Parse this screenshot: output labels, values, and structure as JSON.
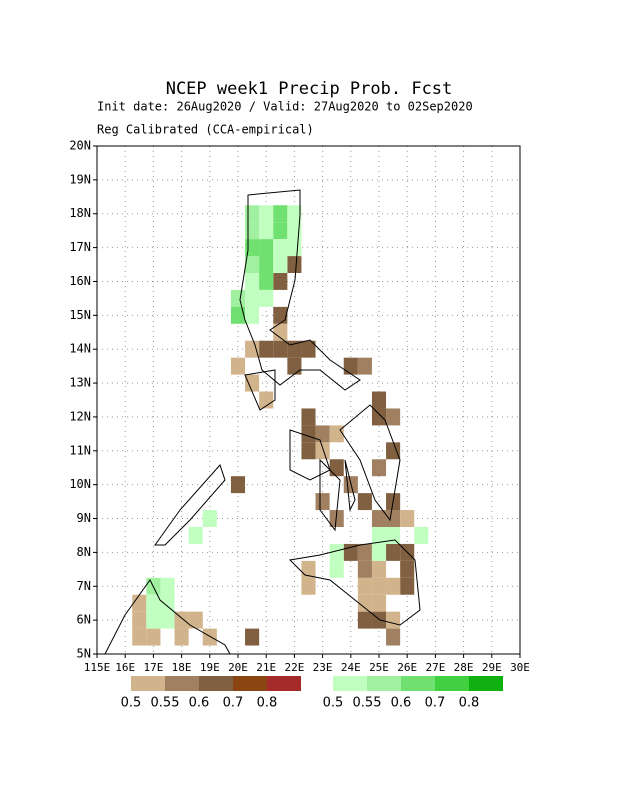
{
  "chart_data": {
    "type": "grid-map",
    "title": "NCEP week1 Precip Prob. Fcst",
    "subtitle": "Init date: 26Aug2020 / Valid: 27Aug2020 to 02Sep2020",
    "subtitle2": "Reg Calibrated (CCA-empirical)",
    "xlim": [
      115,
      130
    ],
    "ylim": [
      5,
      20
    ],
    "xticks": [
      {
        "value": 115,
        "label": "115E"
      },
      {
        "value": 116,
        "label": "16E"
      },
      {
        "value": 117,
        "label": "17E"
      },
      {
        "value": 118,
        "label": "18E"
      },
      {
        "value": 119,
        "label": "19E"
      },
      {
        "value": 120,
        "label": "20E"
      },
      {
        "value": 121,
        "label": "21E"
      },
      {
        "value": 122,
        "label": "22E"
      },
      {
        "value": 123,
        "label": "23E"
      },
      {
        "value": 124,
        "label": "24E"
      },
      {
        "value": 125,
        "label": "25E"
      },
      {
        "value": 126,
        "label": "26E"
      },
      {
        "value": 127,
        "label": "27E"
      },
      {
        "value": 128,
        "label": "28E"
      },
      {
        "value": 129,
        "label": "29E"
      },
      {
        "value": 130,
        "label": "30E"
      }
    ],
    "yticks": [
      {
        "value": 5,
        "label": "5N"
      },
      {
        "value": 6,
        "label": "6N"
      },
      {
        "value": 7,
        "label": "7N"
      },
      {
        "value": 8,
        "label": "8N"
      },
      {
        "value": 9,
        "label": "9N"
      },
      {
        "value": 10,
        "label": "10N"
      },
      {
        "value": 11,
        "label": "11N"
      },
      {
        "value": 12,
        "label": "12N"
      },
      {
        "value": 13,
        "label": "13N"
      },
      {
        "value": 14,
        "label": "14N"
      },
      {
        "value": 15,
        "label": "15N"
      },
      {
        "value": 16,
        "label": "16N"
      },
      {
        "value": 17,
        "label": "17N"
      },
      {
        "value": 18,
        "label": "18N"
      },
      {
        "value": 19,
        "label": "19N"
      },
      {
        "value": 20,
        "label": "20N"
      }
    ],
    "grid": true,
    "cell_size": 0.5,
    "dry": {
      "colors": [
        "#d2b48c",
        "#a08060",
        "#806040",
        "#8b4513",
        "#a52a2a"
      ],
      "levels": [
        0.5,
        0.55,
        0.6,
        0.7,
        0.8
      ],
      "cells": [
        [
          121.75,
          16.25,
          0.6
        ],
        [
          121.25,
          15.75,
          0.6
        ],
        [
          121.25,
          14.75,
          0.6
        ],
        [
          121.25,
          14.25,
          0.5
        ],
        [
          121.75,
          13.75,
          0.6
        ],
        [
          121.25,
          13.75,
          0.6
        ],
        [
          122.25,
          13.75,
          0.6
        ],
        [
          120.25,
          13.75,
          0.5
        ],
        [
          120.75,
          13.75,
          0.6
        ],
        [
          119.75,
          13.25,
          0.5
        ],
        [
          121.75,
          13.25,
          0.6
        ],
        [
          120.75,
          12.25,
          0.5
        ],
        [
          120.25,
          12.75,
          0.5
        ],
        [
          123.75,
          13.25,
          0.6
        ],
        [
          124.25,
          13.25,
          0.55
        ],
        [
          124.75,
          12.25,
          0.6
        ],
        [
          124.75,
          11.75,
          0.6
        ],
        [
          125.25,
          11.75,
          0.55
        ],
        [
          122.25,
          11.75,
          0.6
        ],
        [
          122.25,
          11.25,
          0.6
        ],
        [
          122.25,
          10.75,
          0.6
        ],
        [
          122.75,
          11.25,
          0.55
        ],
        [
          123.25,
          11.25,
          0.5
        ],
        [
          122.75,
          10.75,
          0.5
        ],
        [
          123.25,
          10.25,
          0.6
        ],
        [
          122.75,
          9.25,
          0.55
        ],
        [
          123.25,
          8.75,
          0.55
        ],
        [
          123.75,
          9.75,
          0.55
        ],
        [
          124.25,
          9.25,
          0.6
        ],
        [
          125.25,
          10.75,
          0.6
        ],
        [
          124.75,
          10.25,
          0.55
        ],
        [
          125.25,
          9.25,
          0.6
        ],
        [
          124.75,
          8.75,
          0.55
        ],
        [
          125.25,
          8.75,
          0.55
        ],
        [
          125.75,
          8.75,
          0.5
        ],
        [
          125.75,
          7.75,
          0.6
        ],
        [
          125.25,
          7.75,
          0.6
        ],
        [
          125.75,
          7.25,
          0.6
        ],
        [
          125.75,
          6.75,
          0.6
        ],
        [
          125.25,
          6.75,
          0.5
        ],
        [
          124.75,
          6.75,
          0.5
        ],
        [
          124.25,
          6.75,
          0.5
        ],
        [
          124.25,
          6.25,
          0.5
        ],
        [
          124.75,
          6.25,
          0.5
        ],
        [
          124.25,
          5.75,
          0.6
        ],
        [
          124.75,
          5.75,
          0.6
        ],
        [
          125.25,
          5.75,
          0.5
        ],
        [
          125.25,
          5.25,
          0.55
        ],
        [
          124.75,
          7.25,
          0.5
        ],
        [
          124.25,
          7.25,
          0.55
        ],
        [
          123.75,
          7.75,
          0.6
        ],
        [
          124.25,
          7.75,
          0.55
        ],
        [
          122.25,
          7.25,
          0.5
        ],
        [
          122.25,
          6.75,
          0.5
        ],
        [
          119.75,
          9.75,
          0.6
        ],
        [
          117.75,
          5.75,
          0.5
        ],
        [
          118.25,
          5.75,
          0.5
        ],
        [
          117.75,
          5.25,
          0.5
        ],
        [
          116.75,
          5.25,
          0.5
        ],
        [
          116.25,
          5.75,
          0.5
        ],
        [
          116.25,
          5.25,
          0.5
        ],
        [
          116.25,
          6.25,
          0.5
        ],
        [
          118.75,
          5.25,
          0.5
        ],
        [
          120.25,
          5.25,
          0.6
        ]
      ]
    },
    "wet": {
      "colors": [
        "#c0ffc0",
        "#a0f0a0",
        "#70e070",
        "#40d040",
        "#10b010"
      ],
      "levels": [
        0.5,
        0.55,
        0.6,
        0.7,
        0.8
      ],
      "cells": [
        [
          120.25,
          17.75,
          0.55
        ],
        [
          120.75,
          17.75,
          0.5
        ],
        [
          121.25,
          17.75,
          0.6
        ],
        [
          121.75,
          17.75,
          0.5
        ],
        [
          120.25,
          17.25,
          0.55
        ],
        [
          120.75,
          17.25,
          0.5
        ],
        [
          121.25,
          17.25,
          0.6
        ],
        [
          121.75,
          17.25,
          0.5
        ],
        [
          120.25,
          16.75,
          0.6
        ],
        [
          120.75,
          16.75,
          0.6
        ],
        [
          121.25,
          16.75,
          0.5
        ],
        [
          121.75,
          16.75,
          0.5
        ],
        [
          120.25,
          16.25,
          0.55
        ],
        [
          120.75,
          16.25,
          0.6
        ],
        [
          121.25,
          16.25,
          0.5
        ],
        [
          120.25,
          15.75,
          0.5
        ],
        [
          120.75,
          15.75,
          0.6
        ],
        [
          119.75,
          15.25,
          0.55
        ],
        [
          120.25,
          15.25,
          0.5
        ],
        [
          120.75,
          15.25,
          0.5
        ],
        [
          119.75,
          14.75,
          0.6
        ],
        [
          120.25,
          14.75,
          0.5
        ],
        [
          124.75,
          8.25,
          0.5
        ],
        [
          125.25,
          8.25,
          0.5
        ],
        [
          126.25,
          8.25,
          0.5
        ],
        [
          123.25,
          7.75,
          0.5
        ],
        [
          123.25,
          7.25,
          0.5
        ],
        [
          124.75,
          7.75,
          0.5
        ],
        [
          116.75,
          6.75,
          0.55
        ],
        [
          117.25,
          6.75,
          0.5
        ],
        [
          116.75,
          6.25,
          0.5
        ],
        [
          117.25,
          6.25,
          0.5
        ],
        [
          116.75,
          5.75,
          0.5
        ],
        [
          117.25,
          5.75,
          0.5
        ],
        [
          118.75,
          8.75,
          0.5
        ],
        [
          118.25,
          8.25,
          0.5
        ]
      ]
    }
  }
}
